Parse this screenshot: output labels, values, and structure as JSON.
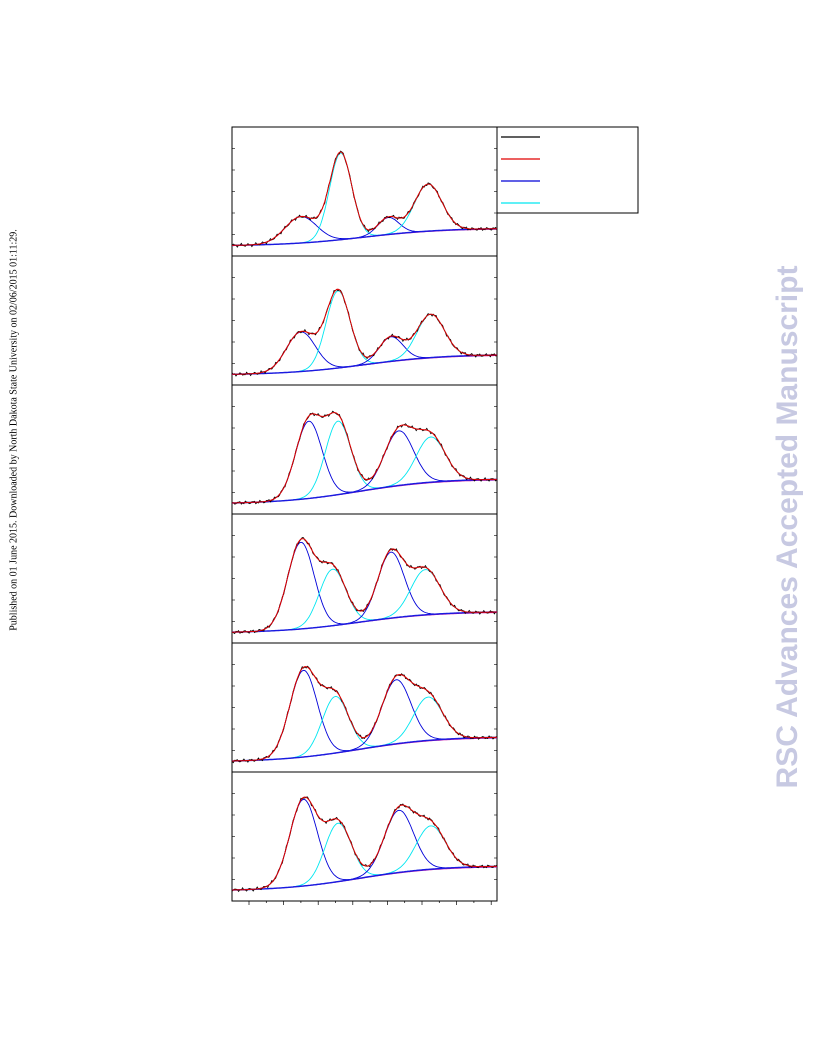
{
  "side_note": "Published on 01 June 2015. Downloaded by North Dakota State University on 02/06/2015 01:11:29.",
  "watermark": "RSC Advances Accepted Manuscript",
  "colors": {
    "experimental": "#000000",
    "fit": "#e00000",
    "component_a": "#0000d8",
    "component_b": "#00e6f0",
    "baseline": "#1a1ae0",
    "baseline_alt": "#c000a0",
    "frame": "#000000"
  },
  "chart_data": {
    "type": "line",
    "title": "",
    "xlabel": "",
    "ylabel": "",
    "xlim": [
      0,
      100
    ],
    "ylim": [
      0,
      1.2
    ],
    "grid": false,
    "legend": {
      "position": "top-right",
      "entries": [
        {
          "series": "experimental",
          "label": ""
        },
        {
          "series": "fit",
          "label": ""
        },
        {
          "series": "component_a",
          "label": ""
        },
        {
          "series": "component_b",
          "label": ""
        }
      ]
    },
    "panels": [
      {
        "baseline": {
          "start": 0.0,
          "end": 0.19,
          "center": 50,
          "width": 15
        },
        "peaks": [
          {
            "kind": "a",
            "center": 26,
            "amp": 0.28,
            "width": 6.0
          },
          {
            "kind": "b",
            "center": 41,
            "amp": 0.92,
            "width": 4.2
          },
          {
            "kind": "a",
            "center": 59,
            "amp": 0.18,
            "width": 4.0
          },
          {
            "kind": "b",
            "center": 74,
            "amp": 0.5,
            "width": 5.2
          }
        ]
      },
      {
        "baseline": {
          "start": 0.0,
          "end": 0.22,
          "center": 50,
          "width": 15
        },
        "peaks": [
          {
            "kind": "a",
            "center": 26,
            "amp": 0.42,
            "width": 5.5
          },
          {
            "kind": "b",
            "center": 40,
            "amp": 0.82,
            "width": 4.5
          },
          {
            "kind": "a",
            "center": 60,
            "amp": 0.26,
            "width": 4.5
          },
          {
            "kind": "b",
            "center": 75,
            "amp": 0.46,
            "width": 5.2
          }
        ]
      },
      {
        "baseline": {
          "start": 0.0,
          "end": 0.27,
          "center": 48,
          "width": 15
        },
        "peaks": [
          {
            "kind": "a",
            "center": 29,
            "amp": 0.82,
            "width": 5.0
          },
          {
            "kind": "b",
            "center": 40,
            "amp": 0.78,
            "width": 4.8
          },
          {
            "kind": "a",
            "center": 63,
            "amp": 0.58,
            "width": 5.5
          },
          {
            "kind": "b",
            "center": 75,
            "amp": 0.48,
            "width": 5.5
          }
        ]
      },
      {
        "baseline": {
          "start": 0.0,
          "end": 0.23,
          "center": 48,
          "width": 15
        },
        "peaks": [
          {
            "kind": "a",
            "center": 26,
            "amp": 0.92,
            "width": 5.0
          },
          {
            "kind": "b",
            "center": 38,
            "amp": 0.6,
            "width": 5.0
          },
          {
            "kind": "a",
            "center": 60,
            "amp": 0.7,
            "width": 5.0
          },
          {
            "kind": "b",
            "center": 73,
            "amp": 0.48,
            "width": 5.5
          }
        ]
      },
      {
        "baseline": {
          "start": 0.0,
          "end": 0.27,
          "center": 48,
          "width": 15
        },
        "peaks": [
          {
            "kind": "a",
            "center": 27,
            "amp": 0.92,
            "width": 5.2
          },
          {
            "kind": "b",
            "center": 39,
            "amp": 0.6,
            "width": 5.0
          },
          {
            "kind": "a",
            "center": 62,
            "amp": 0.68,
            "width": 5.5
          },
          {
            "kind": "b",
            "center": 74,
            "amp": 0.46,
            "width": 5.5
          }
        ]
      },
      {
        "baseline": {
          "start": 0.0,
          "end": 0.27,
          "center": 48,
          "width": 15
        },
        "peaks": [
          {
            "kind": "a",
            "center": 27,
            "amp": 0.92,
            "width": 5.2
          },
          {
            "kind": "b",
            "center": 40,
            "amp": 0.62,
            "width": 5.0
          },
          {
            "kind": "a",
            "center": 63,
            "amp": 0.66,
            "width": 5.5
          },
          {
            "kind": "b",
            "center": 75,
            "amp": 0.46,
            "width": 5.5
          }
        ]
      }
    ]
  }
}
